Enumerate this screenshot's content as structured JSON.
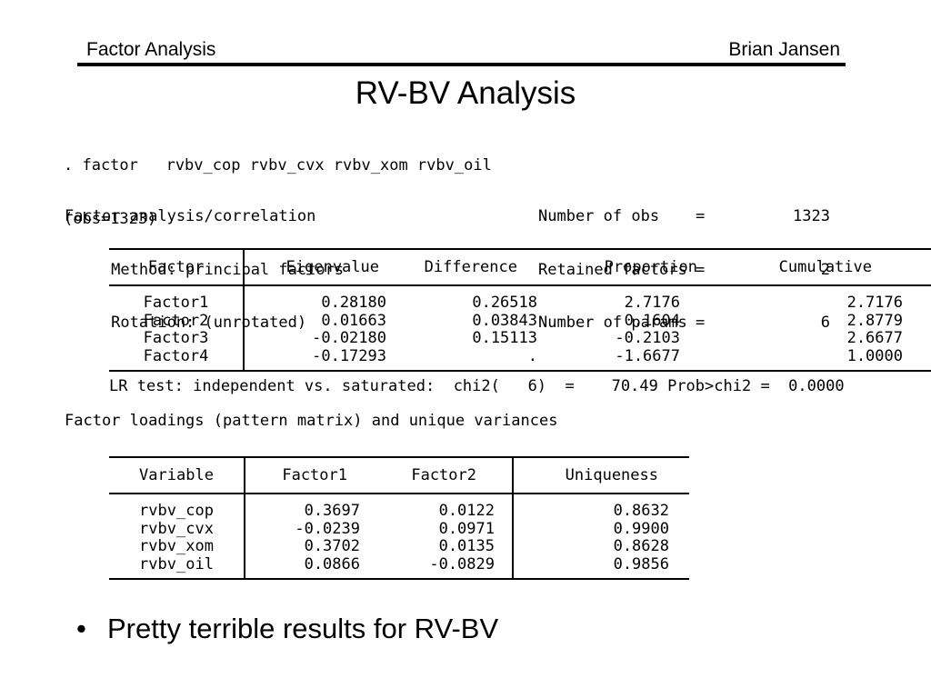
{
  "page": {
    "background": "#ffffff",
    "text_color": "#000000"
  },
  "header": {
    "title": "Factor Analysis",
    "author": "Brian Jansen"
  },
  "slide_title": "RV-BV Analysis",
  "stata_output": {
    "command_line": ". factor   rvbv_cop rvbv_cvx rvbv_xom rvbv_oil",
    "obs_line": "(obs=1323)",
    "summary": {
      "left_lines": [
        "Factor analysis/correlation",
        "     Method: principal factors",
        "     Rotation: (unrotated)"
      ],
      "equals_sign": "=",
      "right_stats": [
        {
          "label": "Number of obs",
          "value": "1323"
        },
        {
          "label": "Retained factors",
          "value": "2"
        },
        {
          "label": "Number of params",
          "value": "6"
        }
      ]
    },
    "eigen_table": {
      "col_headers": [
        "Factor",
        "Eigenvalue",
        "Difference",
        "Proportion",
        "Cumulative"
      ],
      "rows": [
        [
          "Factor1",
          "0.28180",
          "0.26518",
          "2.7176",
          "2.7176"
        ],
        [
          "Factor2",
          "0.01663",
          "0.03843",
          "0.1604",
          "2.8779"
        ],
        [
          "Factor3",
          "-0.02180",
          "0.15113",
          "-0.2103",
          "2.6677"
        ],
        [
          "Factor4",
          "-0.17293",
          ".",
          "-1.6677",
          "1.0000"
        ]
      ]
    },
    "lr_test_line": "LR test: independent vs. saturated:  chi2(   6)  =    70.49 Prob>chi2 =  0.0000",
    "loadings_caption": "Factor loadings (pattern matrix) and unique variances",
    "loadings_table": {
      "col_headers": [
        "Variable",
        "Factor1",
        "Factor2",
        "Uniqueness"
      ],
      "rows": [
        [
          "rvbv_cop",
          "0.3697",
          "0.0122",
          "0.8632"
        ],
        [
          "rvbv_cvx",
          "-0.0239",
          "0.0971",
          "0.9900"
        ],
        [
          "rvbv_xom",
          "0.3702",
          "0.0135",
          "0.8628"
        ],
        [
          "rvbv_oil",
          "0.0866",
          "-0.0829",
          "0.9856"
        ]
      ]
    }
  },
  "bullet": {
    "marker": "•",
    "text": "Pretty terrible results for RV-BV"
  }
}
